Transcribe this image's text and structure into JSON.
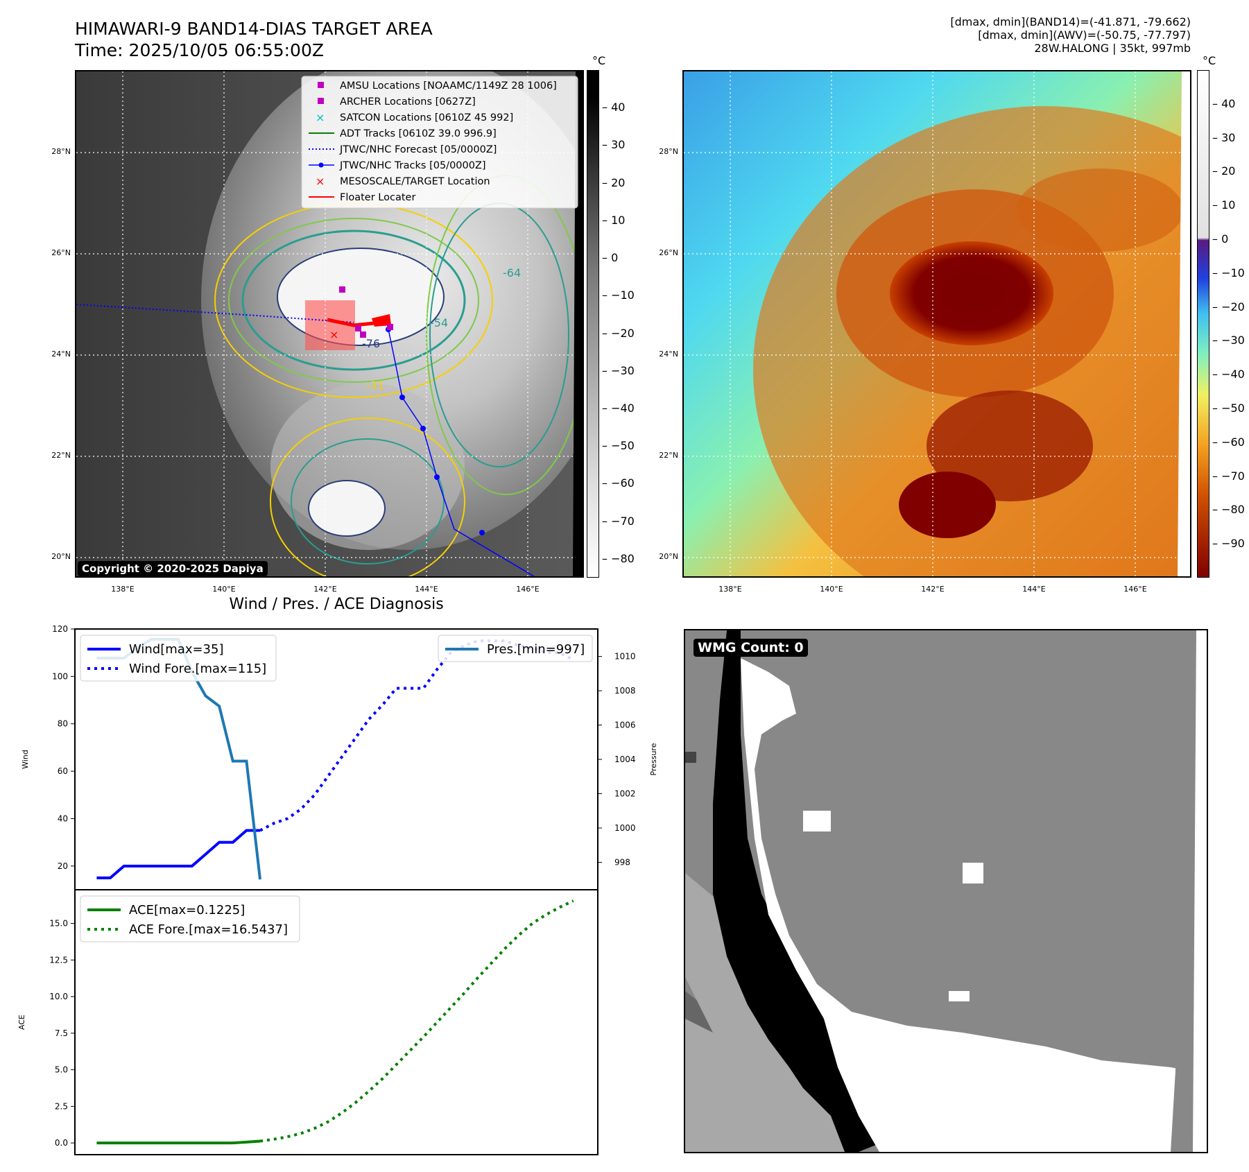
{
  "header": {
    "title_line1": "HIMAWARI-9 BAND14-DIAS TARGET AREA",
    "title_line2": "Time: 2025/10/05 06:55:00Z",
    "stat_line1": "[dmax, dmin](BAND14)=(-41.871, -79.662)",
    "stat_line2": "[dmax, dmin](AWV)=(-50.75, -77.797)",
    "stat_line3": "28W.HALONG | 35kt, 997mb"
  },
  "map": {
    "lat_labels": [
      "28°N",
      "26°N",
      "24°N",
      "22°N",
      "20°N"
    ],
    "lon_labels": [
      "138°E",
      "140°E",
      "142°E",
      "144°E",
      "146°E"
    ],
    "copyright": "Copyright © 2020-2025 Dapiya",
    "legend": [
      {
        "label": "AMSU Locations [NOAAMC/1149Z 28 1006]",
        "icon": "square",
        "color": "#c000c0"
      },
      {
        "label": "ARCHER Locations [0627Z]",
        "icon": "square",
        "color": "#c000c0"
      },
      {
        "label": "SATCON Locations [0610Z 45 992]",
        "icon": "x-mark",
        "color": "#00bfbf"
      },
      {
        "label": "ADT Tracks [0610Z 39.0 996.9]",
        "icon": "line",
        "color": "#008000"
      },
      {
        "label": "JTWC/NHC Forecast [05/0000Z]",
        "icon": "dotted-line",
        "color": "#0000ff"
      },
      {
        "label": "JTWC/NHC Tracks [05/0000Z]",
        "icon": "line-dot",
        "color": "#0000ff"
      },
      {
        "label": "MESOSCALE/TARGET Location",
        "icon": "x-mark",
        "color": "#ff0000"
      },
      {
        "label": "Floater Locater",
        "icon": "line",
        "color": "#ff0000"
      }
    ],
    "contour_labels": [
      "-76",
      "-64",
      "-54",
      "-31"
    ]
  },
  "colorbar_left": {
    "unit": "°C",
    "ticks": [
      "40",
      "30",
      "20",
      "10",
      "0",
      "−10",
      "−20",
      "−30",
      "−40",
      "−50",
      "−60",
      "−70",
      "−80"
    ]
  },
  "colorbar_right": {
    "unit": "°C",
    "ticks": [
      "40",
      "30",
      "20",
      "10",
      "0",
      "−10",
      "−20",
      "−30",
      "−40",
      "−50",
      "−60",
      "−70",
      "−80",
      "−90"
    ]
  },
  "wmg": {
    "label": "WMG Count: 0"
  },
  "chart_data": [
    {
      "type": "line",
      "title": "Wind / Pres. / ACE Diagnosis",
      "ylabel": "Wind",
      "y2label": "Pressure",
      "ylim": [
        10,
        120
      ],
      "y2lim": [
        996.4,
        1011.6
      ],
      "yticks": [
        20,
        40,
        60,
        80,
        100,
        120
      ],
      "y2ticks": [
        998,
        1000,
        1002,
        1004,
        1006,
        1008,
        1010
      ],
      "series": [
        {
          "name": "Wind[max=35]",
          "axis": "left",
          "style": "solid",
          "color": "#0000ff",
          "x": [
            0,
            1,
            2,
            3,
            4,
            5,
            6,
            7,
            8,
            9,
            10,
            11,
            12
          ],
          "values": [
            15,
            15,
            20,
            20,
            20,
            20,
            20,
            20,
            25,
            30,
            30,
            35,
            35
          ]
        },
        {
          "name": "Wind Fore.[max=115]",
          "axis": "left",
          "style": "dotted",
          "color": "#0000ff",
          "x": [
            12,
            13,
            14,
            15,
            16,
            17,
            18,
            19,
            20,
            21,
            22,
            23,
            24,
            25,
            26,
            27,
            28,
            29,
            30,
            31,
            32,
            33,
            34,
            35
          ],
          "values": [
            35,
            38,
            40,
            44,
            50,
            58,
            66,
            74,
            82,
            88,
            95,
            95,
            95,
            103,
            110,
            113,
            115,
            115,
            115,
            113,
            112,
            110,
            110,
            107
          ]
        },
        {
          "name": "Pres.[min=997]",
          "axis": "right",
          "style": "solid",
          "color": "#1f77b4",
          "x": [
            0,
            1,
            2,
            3,
            4,
            5,
            6,
            7,
            8,
            9,
            10,
            11,
            12
          ],
          "values": [
            1009.9,
            1009.9,
            1009.9,
            1010.5,
            1011,
            1011,
            1011,
            1009.1,
            1007.7,
            1007.1,
            1003.9,
            1003.9,
            997
          ]
        }
      ]
    },
    {
      "type": "line",
      "ylabel": "ACE",
      "ylim": [
        -0.8,
        17.3
      ],
      "yticks": [
        0.0,
        2.5,
        5.0,
        7.5,
        10.0,
        12.5,
        15.0
      ],
      "ytick_labels": [
        "0.0",
        "2.5",
        "5.0",
        "7.5",
        "10.0",
        "12.5",
        "15.0"
      ],
      "series": [
        {
          "name": "ACE[max=0.1225]",
          "style": "solid",
          "color": "#008000",
          "x": [
            0,
            1,
            2,
            3,
            4,
            5,
            6,
            7,
            8,
            9,
            10,
            11,
            12
          ],
          "values": [
            0,
            0,
            0,
            0,
            0,
            0,
            0,
            0,
            0,
            0,
            0,
            0.06,
            0.1225
          ]
        },
        {
          "name": "ACE Fore.[max=16.5437]",
          "style": "dotted",
          "color": "#008000",
          "x": [
            12,
            13,
            14,
            15,
            16,
            17,
            18,
            19,
            20,
            21,
            22,
            23,
            24,
            25,
            26,
            27,
            28,
            29,
            30,
            31,
            32,
            33,
            34,
            35
          ],
          "values": [
            0.1225,
            0.25,
            0.42,
            0.65,
            1.0,
            1.45,
            2.05,
            2.75,
            3.55,
            4.4,
            5.35,
            6.3,
            7.25,
            8.25,
            9.25,
            10.25,
            11.3,
            12.3,
            13.3,
            14.2,
            15.0,
            15.6,
            16.1,
            16.5437
          ]
        }
      ]
    }
  ]
}
